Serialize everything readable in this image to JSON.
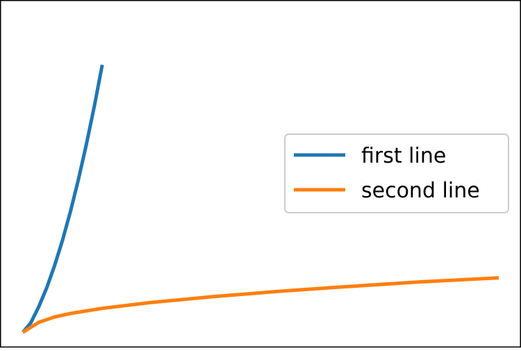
{
  "chart_data": {
    "type": "line",
    "grid": false,
    "axes_visible": false,
    "legend_position": "center-right",
    "xlim": [
      0,
      30
    ],
    "ylim": [
      0,
      100
    ],
    "series": [
      {
        "name": "first line",
        "color": "#1f77b4",
        "x": [
          0,
          0.5,
          1,
          1.5,
          2,
          2.5,
          3,
          3.5,
          4,
          4.5,
          5
        ],
        "y": [
          0,
          3,
          8,
          14,
          21,
          29,
          38,
          48,
          59,
          71,
          84
        ]
      },
      {
        "name": "second line",
        "color": "#ff7f0e",
        "x": [
          0,
          1,
          2,
          3,
          5,
          8,
          12,
          16,
          20,
          25,
          30
        ],
        "y": [
          0,
          3.1,
          4.8,
          5.9,
          7.5,
          9.3,
          11.2,
          12.8,
          14.2,
          15.8,
          17.1
        ]
      }
    ]
  }
}
